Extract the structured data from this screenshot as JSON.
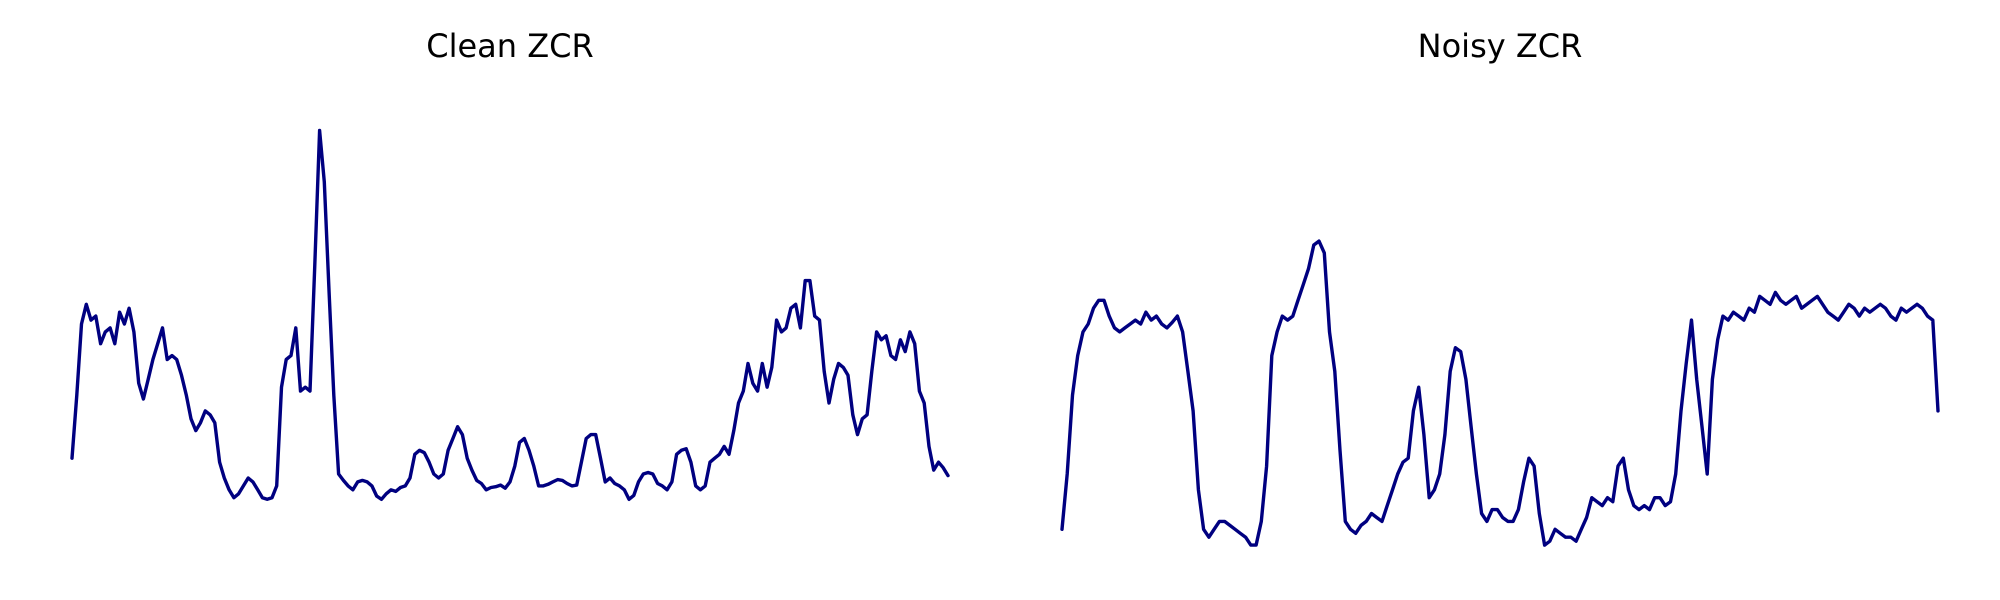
{
  "colors": {
    "line": "#000080",
    "background": "#ffffff"
  },
  "chart_data": [
    {
      "type": "line",
      "title": "Clean ZCR",
      "xlabel": "",
      "ylabel": "",
      "axes_visible": false,
      "grid": false,
      "xlim": [
        0,
        165
      ],
      "ylim": [
        0.02,
        0.6
      ],
      "values": [
        0.14,
        0.22,
        0.31,
        0.335,
        0.315,
        0.32,
        0.285,
        0.3,
        0.305,
        0.285,
        0.325,
        0.31,
        0.33,
        0.3,
        0.235,
        0.215,
        0.24,
        0.265,
        0.285,
        0.305,
        0.265,
        0.27,
        0.265,
        0.245,
        0.22,
        0.19,
        0.175,
        0.185,
        0.2,
        0.195,
        0.185,
        0.135,
        0.115,
        0.1,
        0.09,
        0.095,
        0.105,
        0.115,
        0.11,
        0.1,
        0.09,
        0.088,
        0.09,
        0.105,
        0.23,
        0.265,
        0.27,
        0.305,
        0.225,
        0.23,
        0.225,
        0.385,
        0.555,
        0.49,
        0.35,
        0.22,
        0.12,
        0.112,
        0.105,
        0.1,
        0.11,
        0.112,
        0.11,
        0.105,
        0.092,
        0.088,
        0.095,
        0.1,
        0.098,
        0.103,
        0.105,
        0.115,
        0.145,
        0.15,
        0.147,
        0.135,
        0.12,
        0.115,
        0.12,
        0.15,
        0.165,
        0.18,
        0.17,
        0.14,
        0.125,
        0.112,
        0.108,
        0.1,
        0.103,
        0.104,
        0.106,
        0.102,
        0.11,
        0.13,
        0.16,
        0.165,
        0.15,
        0.13,
        0.105,
        0.105,
        0.107,
        0.11,
        0.113,
        0.112,
        0.108,
        0.105,
        0.106,
        0.135,
        0.165,
        0.17,
        0.17,
        0.14,
        0.11,
        0.115,
        0.108,
        0.105,
        0.1,
        0.088,
        0.093,
        0.11,
        0.12,
        0.122,
        0.12,
        0.108,
        0.105,
        0.1,
        0.11,
        0.145,
        0.15,
        0.152,
        0.135,
        0.105,
        0.1,
        0.105,
        0.135,
        0.14,
        0.145,
        0.155,
        0.145,
        0.175,
        0.21,
        0.225,
        0.26,
        0.235,
        0.225,
        0.26,
        0.23,
        0.255,
        0.315,
        0.3,
        0.305,
        0.33,
        0.335,
        0.305,
        0.365,
        0.365,
        0.32,
        0.315,
        0.25,
        0.21,
        0.24,
        0.26,
        0.255,
        0.245,
        0.195,
        0.17,
        0.19,
        0.195,
        0.25,
        0.3,
        0.29,
        0.295,
        0.27,
        0.265,
        0.29,
        0.275,
        0.3,
        0.285,
        0.225,
        0.21,
        0.155,
        0.125,
        0.135,
        0.128,
        0.118
      ]
    },
    {
      "type": "line",
      "title": "Noisy ZCR",
      "xlabel": "",
      "ylabel": "",
      "axes_visible": false,
      "grid": false,
      "xlim": [
        0,
        165
      ],
      "ylim": [
        0.02,
        0.6
      ],
      "values": [
        0.05,
        0.12,
        0.22,
        0.27,
        0.3,
        0.31,
        0.33,
        0.34,
        0.34,
        0.32,
        0.305,
        0.3,
        0.305,
        0.31,
        0.315,
        0.31,
        0.325,
        0.315,
        0.32,
        0.31,
        0.305,
        0.312,
        0.32,
        0.3,
        0.25,
        0.2,
        0.1,
        0.05,
        0.04,
        0.05,
        0.06,
        0.06,
        0.055,
        0.05,
        0.045,
        0.04,
        0.03,
        0.03,
        0.06,
        0.13,
        0.27,
        0.3,
        0.32,
        0.315,
        0.32,
        0.34,
        0.36,
        0.38,
        0.41,
        0.415,
        0.4,
        0.3,
        0.25,
        0.15,
        0.06,
        0.05,
        0.045,
        0.055,
        0.06,
        0.07,
        0.065,
        0.06,
        0.08,
        0.1,
        0.12,
        0.135,
        0.14,
        0.2,
        0.23,
        0.17,
        0.09,
        0.1,
        0.12,
        0.17,
        0.25,
        0.28,
        0.275,
        0.24,
        0.18,
        0.12,
        0.07,
        0.06,
        0.075,
        0.075,
        0.065,
        0.06,
        0.06,
        0.075,
        0.11,
        0.14,
        0.13,
        0.07,
        0.03,
        0.035,
        0.05,
        0.045,
        0.04,
        0.04,
        0.035,
        0.05,
        0.065,
        0.09,
        0.085,
        0.08,
        0.09,
        0.085,
        0.13,
        0.14,
        0.1,
        0.08,
        0.075,
        0.08,
        0.075,
        0.09,
        0.09,
        0.08,
        0.085,
        0.12,
        0.2,
        0.26,
        0.315,
        0.24,
        0.18,
        0.12,
        0.24,
        0.29,
        0.32,
        0.315,
        0.325,
        0.32,
        0.315,
        0.33,
        0.325,
        0.345,
        0.34,
        0.335,
        0.35,
        0.34,
        0.335,
        0.34,
        0.345,
        0.33,
        0.335,
        0.34,
        0.345,
        0.335,
        0.325,
        0.32,
        0.315,
        0.325,
        0.335,
        0.33,
        0.32,
        0.33,
        0.325,
        0.33,
        0.335,
        0.33,
        0.32,
        0.315,
        0.33,
        0.325,
        0.33,
        0.335,
        0.33,
        0.32,
        0.315,
        0.2
      ]
    }
  ]
}
